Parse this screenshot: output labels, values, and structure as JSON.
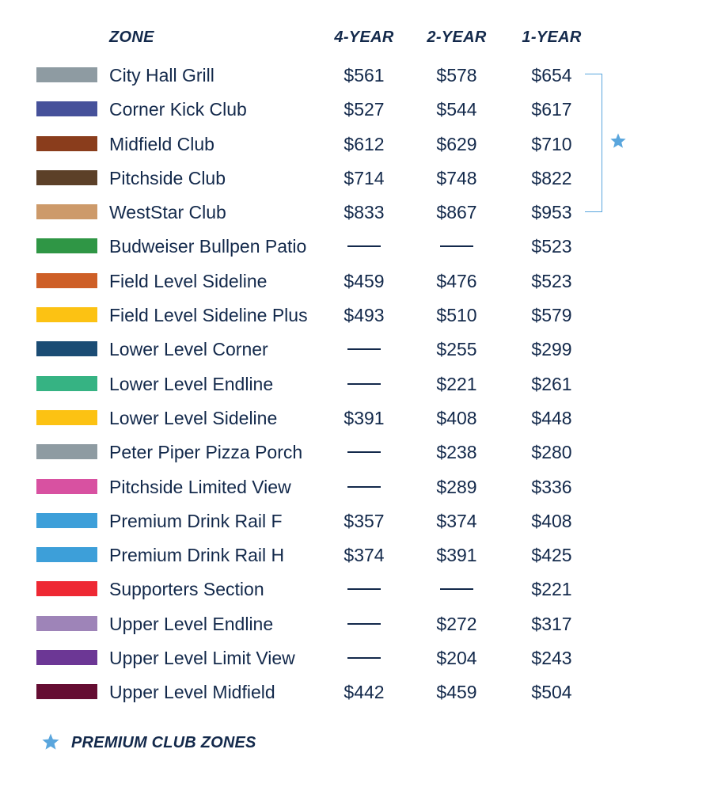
{
  "header": {
    "zone": "ZONE",
    "four_year": "4-YEAR",
    "two_year": "2-YEAR",
    "one_year": "1-YEAR"
  },
  "rows": [
    {
      "zone": "City Hall Grill",
      "color": "#8e9ba2",
      "y4": "$561",
      "y2": "$578",
      "y1": "$654",
      "premium": true
    },
    {
      "zone": "Corner Kick Club",
      "color": "#46519a",
      "y4": "$527",
      "y2": "$544",
      "y1": "$617",
      "premium": true
    },
    {
      "zone": "Midfield Club",
      "color": "#8a3d1c",
      "y4": "$612",
      "y2": "$629",
      "y1": "$710",
      "premium": true
    },
    {
      "zone": "Pitchside Club",
      "color": "#5c4028",
      "y4": "$714",
      "y2": "$748",
      "y1": "$822",
      "premium": true
    },
    {
      "zone": "WestStar Club",
      "color": "#cd9a6a",
      "y4": "$833",
      "y2": "$867",
      "y1": "$953",
      "premium": true
    },
    {
      "zone": "Budweiser Bullpen Patio",
      "color": "#2f9645",
      "y4": null,
      "y2": null,
      "y1": "$523"
    },
    {
      "zone": "Field Level Sideline",
      "color": "#ce5f27",
      "y4": "$459",
      "y2": "$476",
      "y1": "$523"
    },
    {
      "zone": "Field Level Sideline Plus",
      "color": "#fcc213",
      "y4": "$493",
      "y2": "$510",
      "y1": "$579"
    },
    {
      "zone": "Lower Level Corner",
      "color": "#1b4c74",
      "y4": null,
      "y2": "$255",
      "y1": "$299"
    },
    {
      "zone": "Lower Level Endline",
      "color": "#36b383",
      "y4": null,
      "y2": "$221",
      "y1": "$261"
    },
    {
      "zone": "Lower Level Sideline",
      "color": "#fcc213",
      "y4": "$391",
      "y2": "$408",
      "y1": "$448"
    },
    {
      "zone": "Peter Piper Pizza Porch",
      "color": "#8e9ba2",
      "y4": null,
      "y2": "$238",
      "y1": "$280"
    },
    {
      "zone": "Pitchside Limited View",
      "color": "#d851a1",
      "y4": null,
      "y2": "$289",
      "y1": "$336"
    },
    {
      "zone": "Premium Drink Rail F",
      "color": "#3d9fd9",
      "y4": "$357",
      "y2": "$374",
      "y1": "$408"
    },
    {
      "zone": "Premium Drink Rail H",
      "color": "#3d9fd9",
      "y4": "$374",
      "y2": "$391",
      "y1": "$425"
    },
    {
      "zone": "Supporters Section",
      "color": "#ee2833",
      "y4": null,
      "y2": null,
      "y1": "$221"
    },
    {
      "zone": "Upper Level Endline",
      "color": "#9e84b8",
      "y4": null,
      "y2": "$272",
      "y1": "$317"
    },
    {
      "zone": "Upper Level Limit View",
      "color": "#6c3795",
      "y4": null,
      "y2": "$204",
      "y1": "$243"
    },
    {
      "zone": "Upper Level Midfield",
      "color": "#650d32",
      "y4": "$442",
      "y2": "$459",
      "y1": "$504"
    }
  ],
  "legend": {
    "label": "PREMIUM CLUB ZONES",
    "icon": "star-icon",
    "color": "#5aa6dd"
  },
  "colors": {
    "text": "#13294b",
    "accent": "#5aa6dd"
  }
}
